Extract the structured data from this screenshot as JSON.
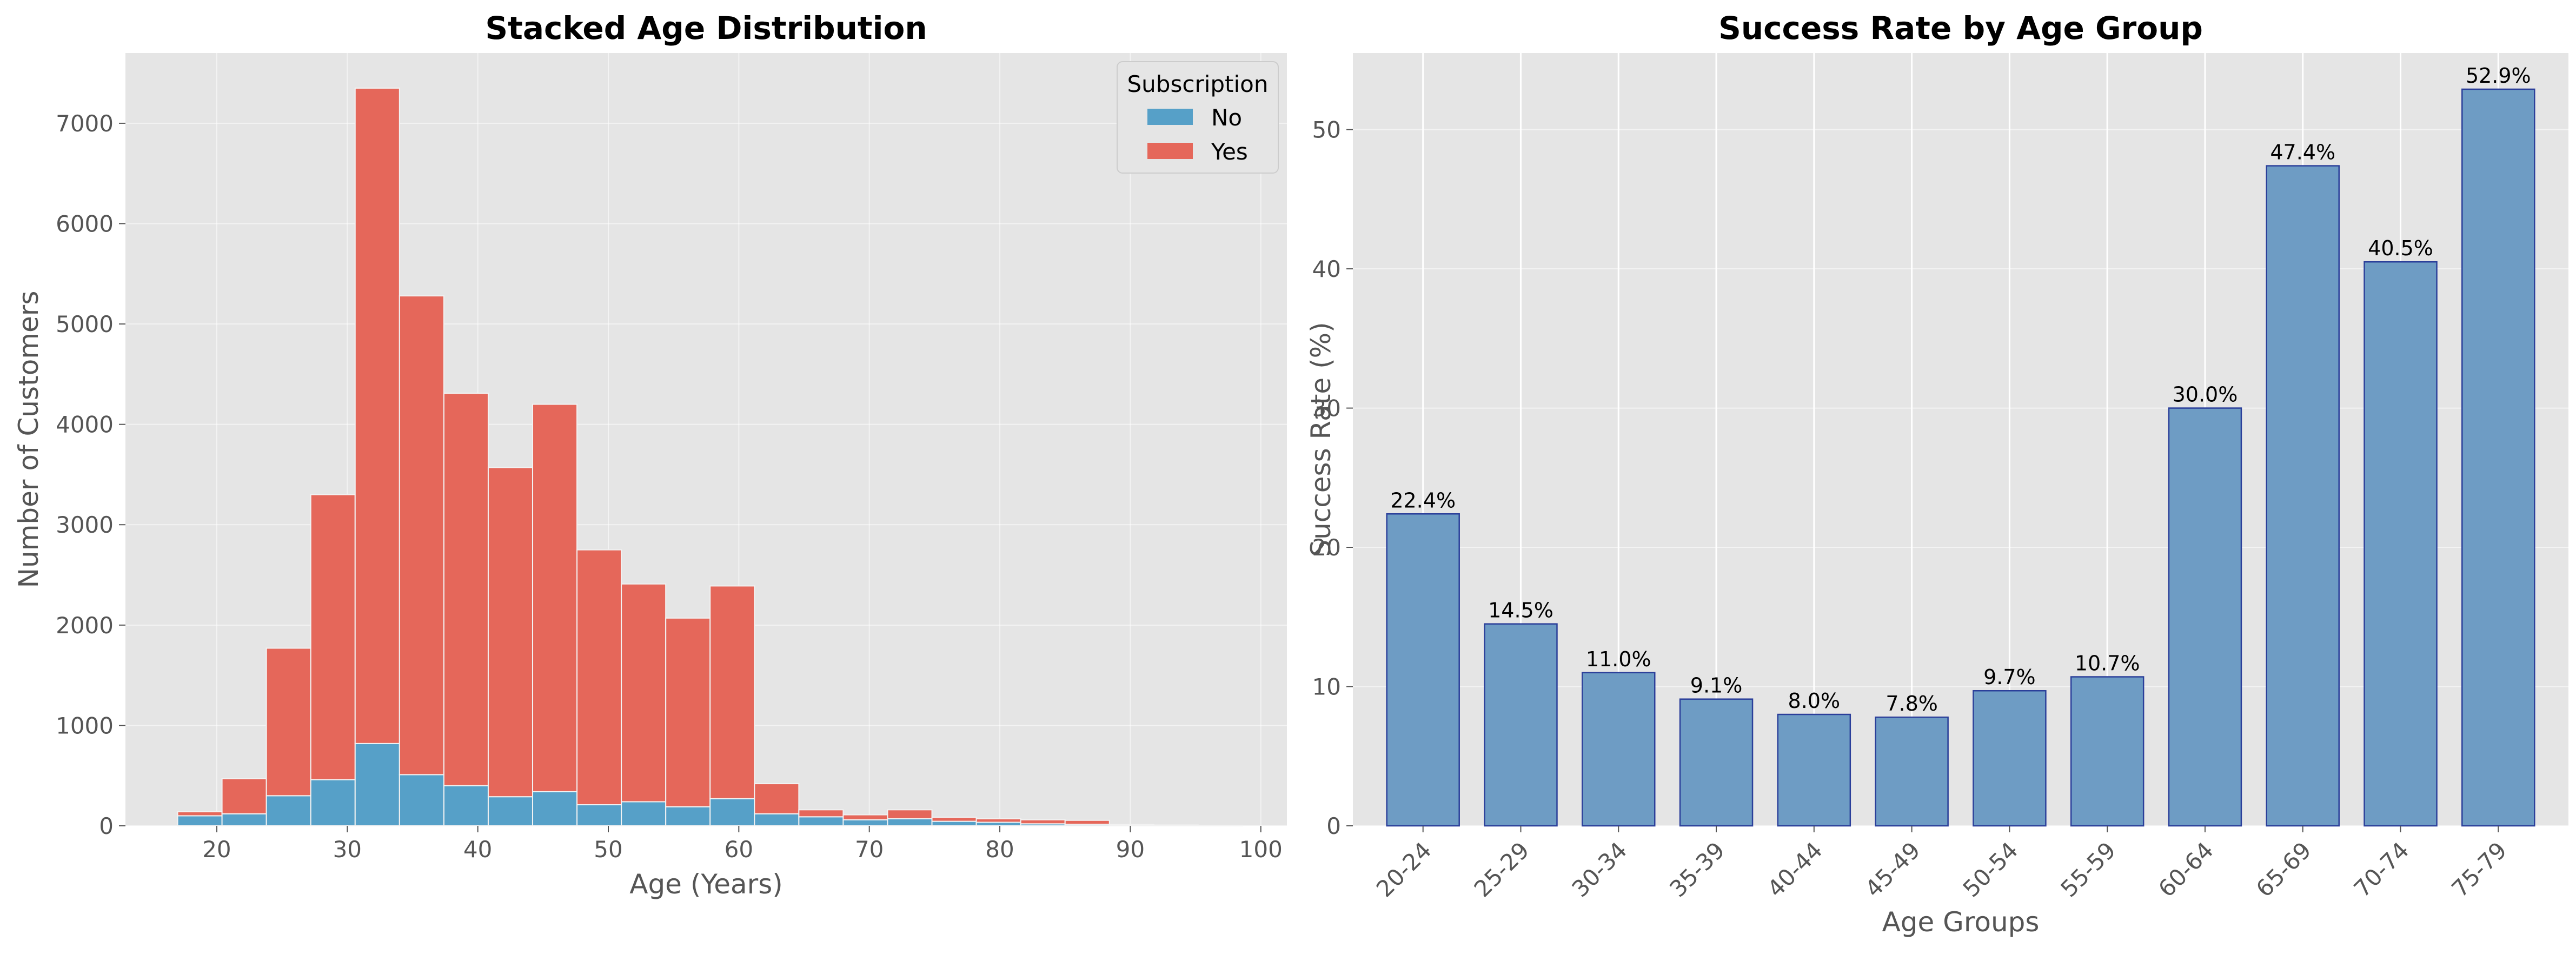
{
  "colors": {
    "no": "#56a0c8",
    "yes": "#e5675a",
    "bar": "#6e9cc4",
    "bar_edge": "#2b3f9a",
    "panel_bg": "#e5e5e5",
    "grid": "#ffffff"
  },
  "chart_data": [
    {
      "type": "bar",
      "stacked": true,
      "title": "Stacked Age Distribution",
      "xlabel": "Age (Years)",
      "ylabel": "Number of Customers",
      "xlim": [
        13,
        102
      ],
      "ylim": [
        0,
        7700
      ],
      "xticks": [
        "20",
        "30",
        "40",
        "50",
        "60",
        "70",
        "80",
        "90",
        "100"
      ],
      "yticks": [
        "0",
        "1000",
        "2000",
        "3000",
        "4000",
        "5000",
        "6000",
        "7000"
      ],
      "grid": true,
      "legend": {
        "title": "Subscription",
        "position": "top-right",
        "entries": [
          "No",
          "Yes"
        ]
      },
      "bin_edges": [
        17,
        20.4,
        23.8,
        27.2,
        30.6,
        34,
        37.4,
        40.8,
        44.2,
        47.6,
        51,
        54.4,
        57.8,
        61.2,
        64.6,
        68,
        71.4,
        74.8,
        78.2,
        81.6,
        85,
        88.4,
        91.8,
        95.2,
        98.6
      ],
      "series": [
        {
          "name": "No",
          "values": [
            100,
            120,
            300,
            460,
            820,
            510,
            400,
            290,
            340,
            210,
            240,
            190,
            270,
            120,
            90,
            60,
            70,
            45,
            35,
            20,
            15,
            5,
            3,
            2
          ]
        },
        {
          "name": "Yes",
          "values": [
            40,
            350,
            1470,
            2840,
            6530,
            4770,
            3910,
            3280,
            3860,
            2540,
            2170,
            1880,
            2120,
            300,
            70,
            50,
            90,
            40,
            35,
            40,
            40,
            8,
            5,
            3
          ]
        }
      ],
      "totals": [
        140,
        470,
        1770,
        3300,
        7350,
        5280,
        4310,
        3570,
        4200,
        2750,
        2410,
        2070,
        2390,
        420,
        160,
        110,
        160,
        85,
        70,
        60,
        55,
        13,
        8,
        5
      ]
    },
    {
      "type": "bar",
      "title": "Success Rate by Age Group",
      "xlabel": "Age Groups",
      "ylabel": "Success Rate (%)",
      "ylim": [
        0,
        55.5
      ],
      "yticks": [
        "0",
        "10",
        "20",
        "30",
        "40",
        "50"
      ],
      "grid": true,
      "categories": [
        "20-24",
        "25-29",
        "30-34",
        "35-39",
        "40-44",
        "45-49",
        "50-54",
        "55-59",
        "60-64",
        "65-69",
        "70-74",
        "75-79"
      ],
      "values": [
        22.4,
        14.5,
        11.0,
        9.1,
        8.0,
        7.8,
        9.7,
        10.7,
        30.0,
        47.4,
        40.5,
        52.9
      ],
      "labels": [
        "22.4%",
        "14.5%",
        "11.0%",
        "9.1%",
        "8.0%",
        "7.8%",
        "9.7%",
        "10.7%",
        "30.0%",
        "47.4%",
        "40.5%",
        "52.9%"
      ]
    }
  ]
}
